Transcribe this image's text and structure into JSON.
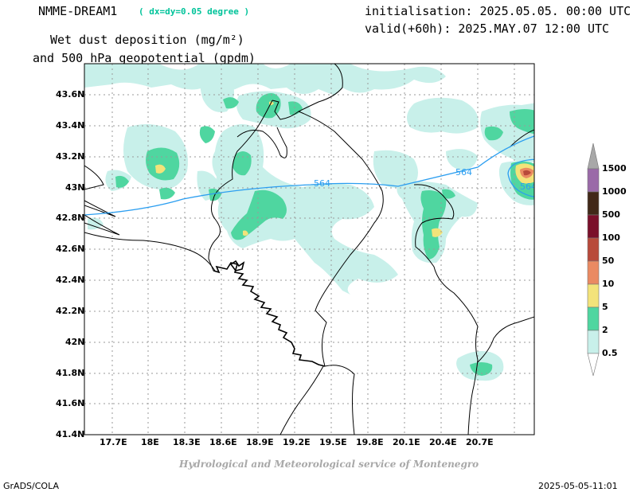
{
  "header": {
    "model": "NMME-DREAM1",
    "resolution": "( dx=dy=0.05 degree )",
    "variable_line1": "Wet dust deposition (mg/m²)",
    "variable_line2": "and 500 hPa geopotential (gpdm)",
    "initialisation": "initialisation: 2025.05.05. 00:00 UTC",
    "valid": "valid(+60h): 2025.MAY.07 12:00 UTC"
  },
  "map": {
    "lon_range": [
      17.5,
      21.0
    ],
    "lat_range": [
      41.4,
      43.8
    ],
    "x_ticks": [
      "17.7E",
      "18E",
      "18.3E",
      "18.6E",
      "18.9E",
      "19.2E",
      "19.5E",
      "19.8E",
      "20.1E",
      "20.4E",
      "20.7E"
    ],
    "y_ticks": [
      "43.6N",
      "43.4N",
      "43.2N",
      "43N",
      "42.8N",
      "42.6N",
      "42.4N",
      "42.2N",
      "42N",
      "41.8N",
      "41.6N",
      "41.4N"
    ],
    "grid": true,
    "contour_label": "564"
  },
  "colorbar": {
    "labels": [
      "1500",
      "1000",
      "500",
      "100",
      "50",
      "10",
      "5",
      "2",
      "0.5"
    ],
    "colors": [
      "#ffffff",
      "#9a6aa8",
      "#412818",
      "#7a0f2a",
      "#b84a3a",
      "#ea8a62",
      "#f3e37a",
      "#4fd6a0",
      "#c8f0ea"
    ]
  },
  "footer": {
    "credit": "Hydrological and Meteorological service of Montenegro",
    "software": "GrADS/COLA",
    "timestamp": "2025-05-05-11:01"
  },
  "colors": {
    "light": "#c8f0ea",
    "green": "#4fd6a0",
    "yellow": "#f3e37a",
    "orange": "#ea8a62",
    "red": "#b84a3a",
    "contour": "#2b9ef0",
    "credit_gray": "#a8a8a8",
    "res_green": "#00c39a"
  }
}
